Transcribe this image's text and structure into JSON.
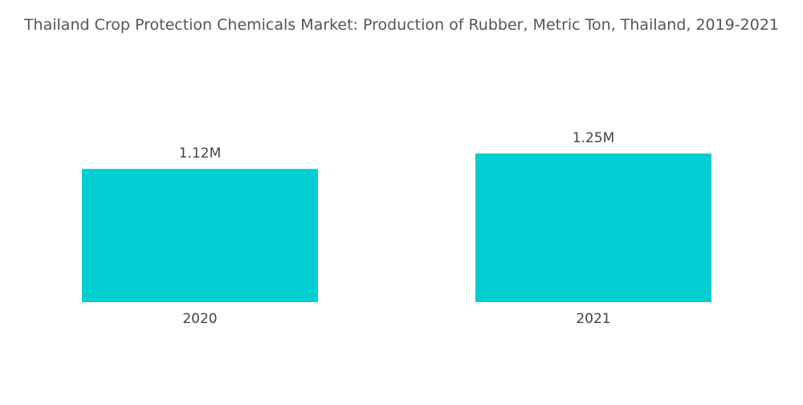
{
  "chart_data": {
    "type": "bar",
    "title": "Thailand Crop Protection Chemicals Market: Production of Rubber, Metric Ton, Thailand, 2019-2021",
    "categories": [
      "2020",
      "2021"
    ],
    "values": [
      1120000,
      1250000
    ],
    "value_labels": [
      "1.12M",
      "1.25M"
    ],
    "color": "#00ced1"
  }
}
